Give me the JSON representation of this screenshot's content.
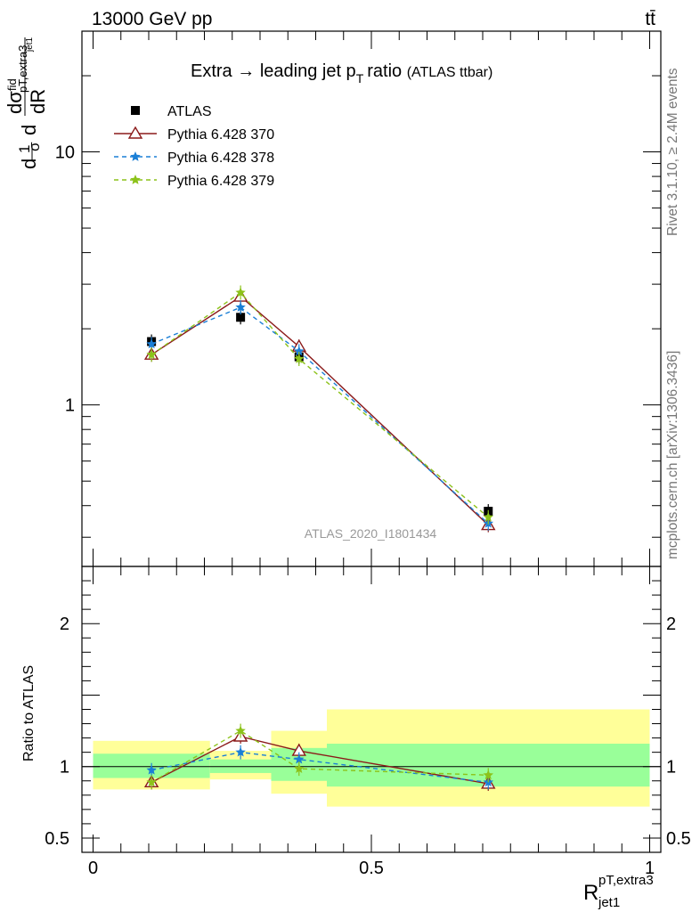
{
  "header": {
    "left": "13000 GeV pp",
    "right": "tt̄"
  },
  "side": {
    "rivet": "Rivet 3.1.10, ≥ 2.4M events",
    "mcplots": "mcplots.cern.ch [arXiv:1306.3436]"
  },
  "analysis_label": "ATLAS_2020_I1801434",
  "chart_data": [
    {
      "type": "scatter",
      "panel": "main",
      "title": "Extra → leading jet pT ratio (ATLAS ttbar)",
      "title_parts": {
        "main": "Extra",
        "arrow": "→",
        "rest": "leading jet p",
        "sub": "T",
        "tail": "ratio",
        "small": "(ATLAS ttbar)"
      },
      "ylabel": "d(1/σ) dσ^fid / dR^pT,extra3_jet1",
      "yscale": "log",
      "ylim": [
        0.23,
        30
      ],
      "xlim": [
        -0.02,
        1.02
      ],
      "yticks": [
        {
          "value": 1,
          "label": "1"
        },
        {
          "value": 10,
          "label": "10"
        }
      ],
      "legend_position": "top-left",
      "x": [
        0.105,
        0.265,
        0.37,
        0.71
      ],
      "series": [
        {
          "name": "ATLAS",
          "color": "#000000",
          "marker": "square",
          "line": "none",
          "values": [
            1.78,
            2.22,
            1.55,
            0.38
          ]
        },
        {
          "name": "Pythia 6.428 370",
          "color": "#8b1a1a",
          "marker": "triangle-open",
          "line": "solid",
          "values": [
            1.58,
            2.68,
            1.7,
            0.335
          ]
        },
        {
          "name": "Pythia 6.428 378",
          "color": "#1a7fd6",
          "marker": "star",
          "line": "dashed",
          "values": [
            1.74,
            2.43,
            1.63,
            0.34
          ]
        },
        {
          "name": "Pythia 6.428 379",
          "color": "#8cc21a",
          "marker": "star",
          "line": "dashed",
          "values": [
            1.58,
            2.78,
            1.52,
            0.36
          ]
        }
      ]
    },
    {
      "type": "scatter",
      "panel": "ratio",
      "ylabel": "Ratio to ATLAS",
      "xlabel": "R^pT,extra3_jet1",
      "xlabel_parts": {
        "base": "R",
        "sup": "pT,extra3",
        "sub": "jet1"
      },
      "ylim": [
        0.4,
        2.4
      ],
      "xlim": [
        -0.02,
        1.02
      ],
      "yticks": [
        {
          "value": 0.5,
          "label": "0.5"
        },
        {
          "value": 1,
          "label": "1"
        },
        {
          "value": 2,
          "label": "2"
        }
      ],
      "xticks": [
        {
          "value": 0,
          "label": "0"
        },
        {
          "value": 0.5,
          "label": "0.5"
        },
        {
          "value": 1,
          "label": "1"
        }
      ],
      "bands": [
        {
          "x0": 0.0,
          "x1": 0.21,
          "inner": [
            0.92,
            1.09
          ],
          "outer": [
            0.84,
            1.18
          ]
        },
        {
          "x0": 0.21,
          "x1": 0.32,
          "inner": [
            0.955,
            1.05
          ],
          "outer": [
            0.91,
            1.11
          ]
        },
        {
          "x0": 0.32,
          "x1": 0.42,
          "inner": [
            0.9,
            1.13
          ],
          "outer": [
            0.81,
            1.25
          ]
        },
        {
          "x0": 0.42,
          "x1": 1.0,
          "inner": [
            0.86,
            1.16
          ],
          "outer": [
            0.72,
            1.4
          ]
        }
      ],
      "band_colors": {
        "inner": "#99ff99",
        "outer": "#ffff99"
      },
      "x": [
        0.105,
        0.265,
        0.37,
        0.71
      ],
      "series": [
        {
          "name": "Pythia 6.428 370",
          "color": "#8b1a1a",
          "marker": "triangle-open",
          "line": "solid",
          "values": [
            0.89,
            1.21,
            1.11,
            0.88
          ]
        },
        {
          "name": "Pythia 6.428 378",
          "color": "#1a7fd6",
          "marker": "star",
          "line": "dashed",
          "values": [
            0.975,
            1.1,
            1.05,
            0.89
          ]
        },
        {
          "name": "Pythia 6.428 379",
          "color": "#8cc21a",
          "marker": "star",
          "line": "dashed",
          "values": [
            0.89,
            1.25,
            0.985,
            0.94
          ]
        }
      ]
    }
  ]
}
